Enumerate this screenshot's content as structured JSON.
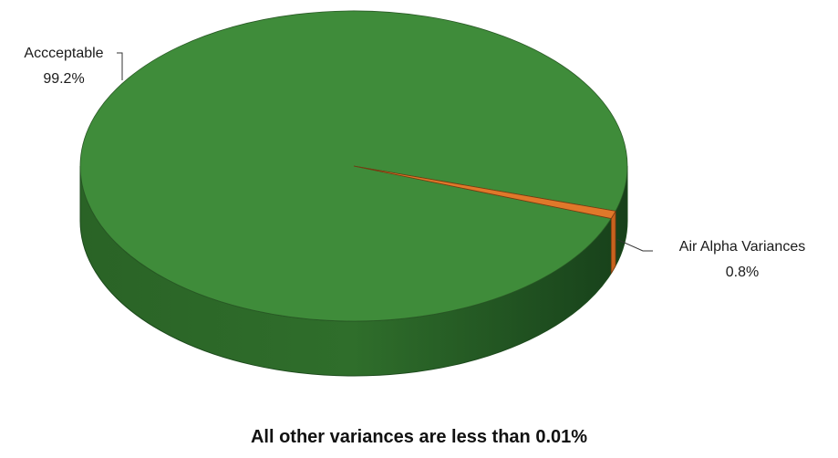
{
  "chart_data": {
    "type": "pie",
    "categories": [
      "Accceptable",
      "Air Alpha Variances"
    ],
    "values": [
      99.2,
      0.8
    ],
    "value_labels": [
      "99.2%",
      "0.8%"
    ],
    "colors": [
      "#3f8c3a",
      "#e0782a"
    ],
    "side_colors": [
      "#2e6a2a",
      "#c8621e"
    ],
    "style": "3d",
    "legend": "none",
    "footnote": "All other variances are less than 0.01%"
  }
}
